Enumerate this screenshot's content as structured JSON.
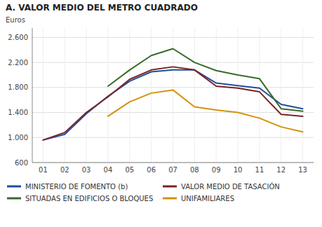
{
  "chart_data": {
    "type": "line",
    "title": "A.  VALOR MEDIO DEL METRO CUADRADO",
    "y_label": "Euros",
    "categories": [
      "01",
      "02",
      "03",
      "04",
      "05",
      "06",
      "07",
      "08",
      "09",
      "10",
      "11",
      "12",
      "13"
    ],
    "series": [
      {
        "name": "MINISTERIO DE FOMENTO (b)",
        "color": "#1f4e9e",
        "values": [
          960,
          1050,
          1380,
          1660,
          1900,
          2050,
          2080,
          2080,
          1870,
          1830,
          1790,
          1530,
          1460
        ]
      },
      {
        "name": "VALOR MEDIO DE TASACIÓN",
        "color": "#7b2323",
        "values": [
          960,
          1080,
          1400,
          1650,
          1930,
          2080,
          2130,
          2080,
          1820,
          1790,
          1730,
          1370,
          1340
        ]
      },
      {
        "name": "SITUADAS EN EDIFICIOS O BLOQUES",
        "color": "#3a6b28",
        "values": [
          null,
          null,
          null,
          1820,
          2080,
          2310,
          2420,
          2200,
          2070,
          2000,
          1940,
          1460,
          1420
        ]
      },
      {
        "name": "UNIFAMILIARES",
        "color": "#d4920a",
        "values": [
          null,
          null,
          null,
          1340,
          1570,
          1710,
          1760,
          1490,
          1440,
          1400,
          1310,
          1170,
          1090
        ]
      }
    ],
    "ylim": [
      600,
      2750
    ],
    "yticks": [
      600,
      {
        "value": 1000,
        "label": "1.000"
      },
      {
        "value": 1400,
        "label": "1.400"
      },
      {
        "value": 1800,
        "label": "1.800"
      },
      {
        "value": 2200,
        "label": "2.200"
      },
      {
        "value": 2600,
        "label": "2.600"
      }
    ],
    "grid": true,
    "legend": "bottom"
  }
}
